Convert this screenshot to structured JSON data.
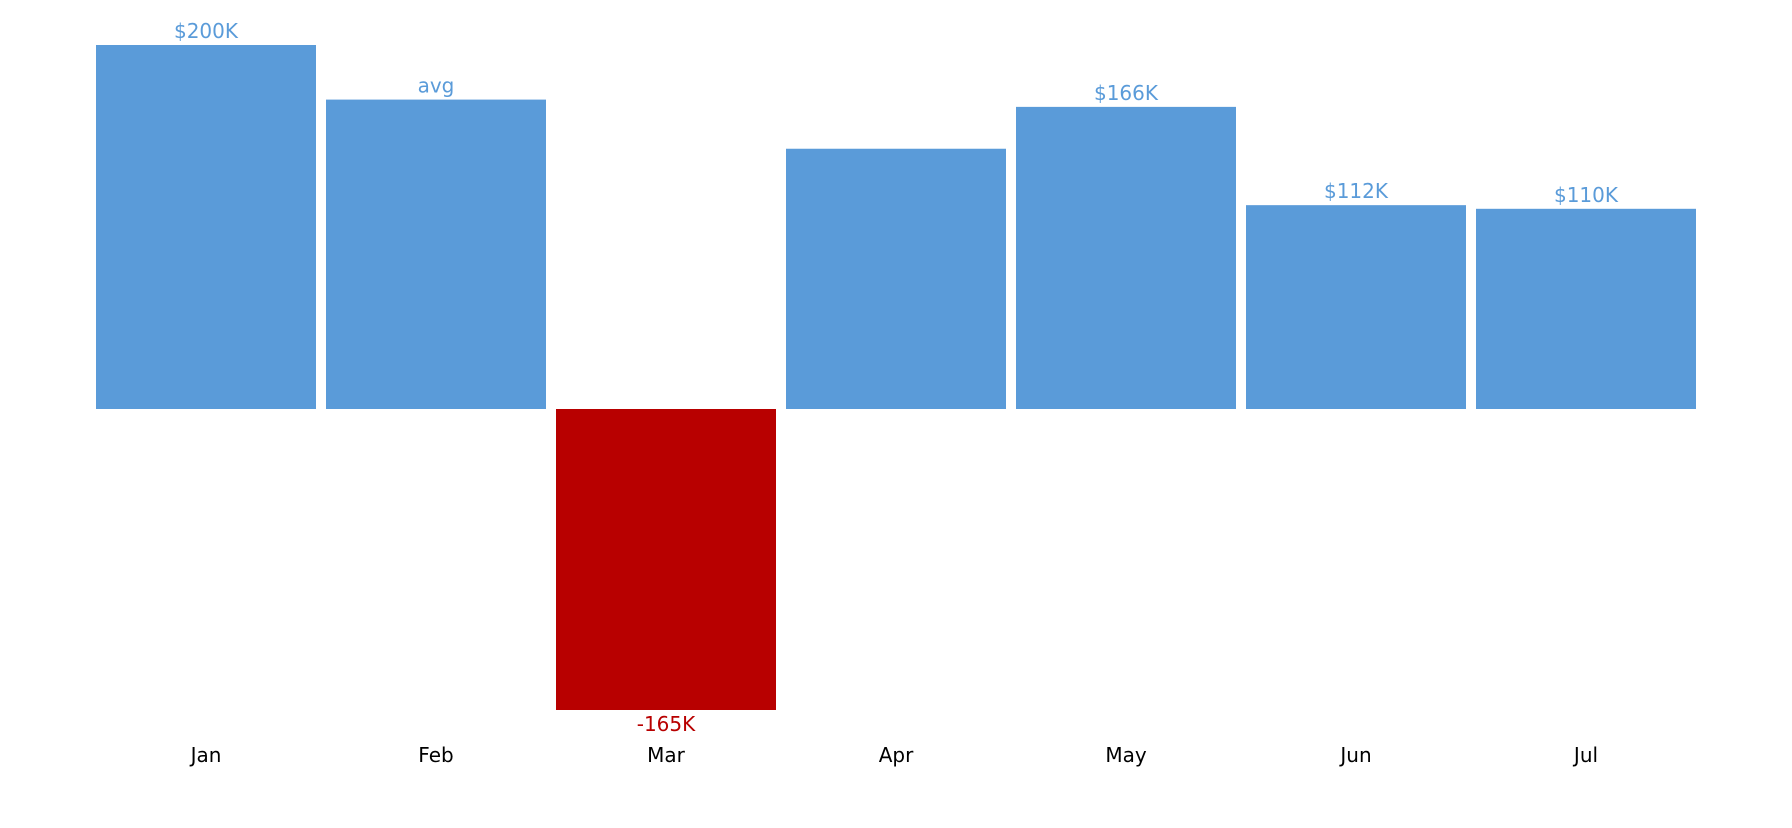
{
  "chart_data": {
    "type": "bar",
    "title": "",
    "xlabel": "",
    "ylabel": "",
    "categories": [
      "Jan",
      "Feb",
      "Mar",
      "Apr",
      "May",
      "Jun",
      "Jul"
    ],
    "values": [
      200,
      170,
      -165,
      143,
      166,
      112,
      110
    ],
    "data_labels": [
      "$200K",
      "avg",
      "-165K",
      "",
      "$166K",
      "$112K",
      "$110K"
    ],
    "units": "thousands of dollars",
    "ylim": [
      -165,
      200
    ],
    "grid": false,
    "legend": "none"
  },
  "colors": {
    "positive": "#5a9bd9",
    "negative": "#b80000",
    "axis_text": "#000000"
  }
}
